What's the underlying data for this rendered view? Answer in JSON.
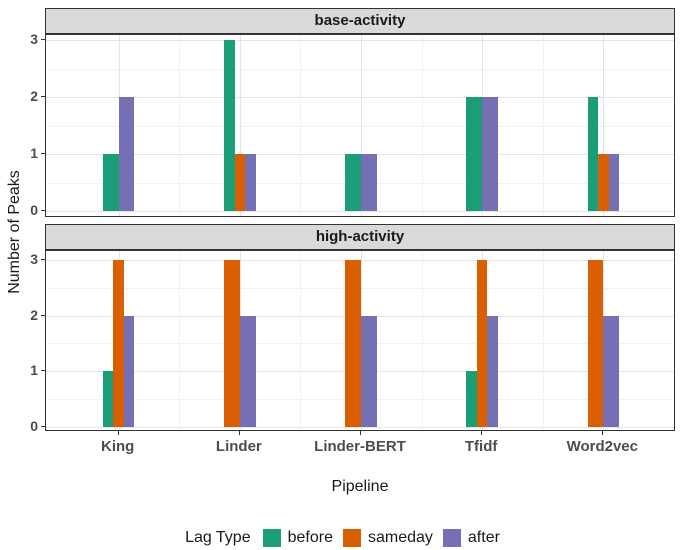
{
  "chart_data": {
    "type": "bar",
    "title": "",
    "xlabel": "Pipeline",
    "ylabel": "Number of Peaks",
    "categories": [
      "King",
      "Linder",
      "Linder-BERT",
      "Tfidf",
      "Word2vec"
    ],
    "y_ticks": [
      0,
      1,
      2,
      3
    ],
    "ylim": [
      0,
      3.2
    ],
    "grid": true,
    "legend": {
      "title": "Lag Type",
      "position": "bottom",
      "items": [
        {
          "label": "before",
          "color": "#1B9E77"
        },
        {
          "label": "sameday",
          "color": "#D95F02"
        },
        {
          "label": "after",
          "color": "#7570B3"
        }
      ]
    },
    "facets": [
      {
        "title": "base-activity",
        "series": [
          {
            "name": "before",
            "values": [
              1,
              3,
              1,
              2,
              2
            ]
          },
          {
            "name": "sameday",
            "values": [
              0,
              1,
              0,
              0,
              1
            ]
          },
          {
            "name": "after",
            "values": [
              2,
              1,
              1,
              2,
              1
            ]
          }
        ]
      },
      {
        "title": "high-activity",
        "series": [
          {
            "name": "before",
            "values": [
              1,
              0,
              0,
              1,
              0
            ]
          },
          {
            "name": "sameday",
            "values": [
              3,
              3,
              3,
              3,
              3
            ]
          },
          {
            "name": "after",
            "values": [
              2,
              2,
              2,
              2,
              2
            ]
          }
        ]
      }
    ]
  },
  "styles": {
    "strip_bg": "#D9D9D9",
    "panel_border": "#333333",
    "grid_major": "#E4E4E4",
    "grid_minor": "#F1F1F1",
    "tick_label_color": "#4D4D4D",
    "text_color": "#1A1A1A",
    "background": "#FFFFFF"
  }
}
